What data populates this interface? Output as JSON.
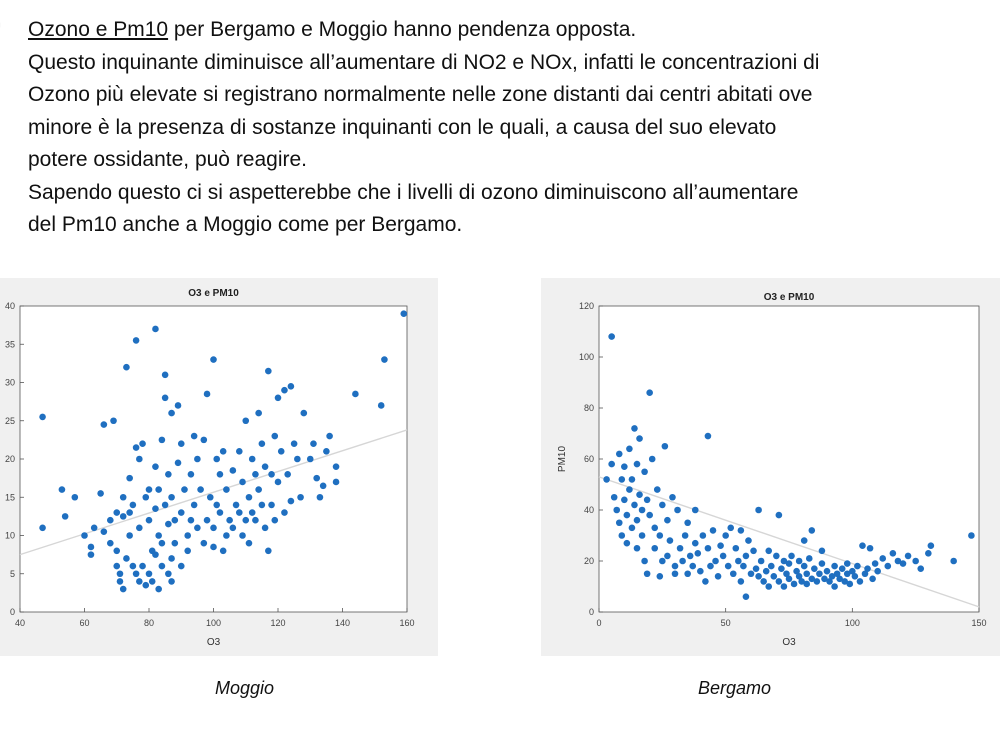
{
  "text": {
    "line1_underlined": "Ozono e Pm10",
    "line1_rest": " per Bergamo e Moggio hanno pendenza opposta.",
    "line2": "Questo inquinante diminuisce all’aumentare di NO2 e NOx, infatti le concentrazioni di",
    "line3": "Ozono più elevate si registrano normalmente nelle zone distanti dai centri abitati ove",
    "line4": "minore è la presenza di sostanze inquinanti con le quali, a causa del suo elevato",
    "line5": "potere ossidante, può reagire.",
    "line6": "Sapendo questo ci si aspetterebbe che i livelli di ozono diminuiscono all’aumentare",
    "line7": "del Pm10 anche a Moggio come per Bergamo."
  },
  "captions": {
    "left": "Moggio",
    "right": "Bergamo"
  },
  "chart_data": [
    {
      "type": "scatter",
      "title": "O3 e PM10",
      "xlabel": "O3",
      "ylabel": "",
      "xlim": [
        40,
        160
      ],
      "ylim": [
        0,
        40
      ],
      "xticks": [
        40,
        60,
        80,
        100,
        120,
        140,
        160
      ],
      "yticks": [
        0,
        5,
        10,
        15,
        20,
        25,
        30,
        35,
        40
      ],
      "grid": false,
      "color": "#1f6fc0",
      "trend": [
        [
          40,
          7.5
        ],
        [
          160,
          23.8
        ]
      ],
      "points": [
        [
          47,
          25.5
        ],
        [
          47,
          11
        ],
        [
          53,
          16
        ],
        [
          54,
          12.5
        ],
        [
          57,
          15
        ],
        [
          60,
          10
        ],
        [
          62,
          8.5
        ],
        [
          62,
          7.5
        ],
        [
          63,
          11
        ],
        [
          65,
          15.5
        ],
        [
          66,
          10.5
        ],
        [
          66,
          24.5
        ],
        [
          68,
          12
        ],
        [
          68,
          9
        ],
        [
          69,
          25
        ],
        [
          70,
          6
        ],
        [
          70,
          8
        ],
        [
          70,
          13
        ],
        [
          71,
          4
        ],
        [
          71,
          5
        ],
        [
          72,
          12.5
        ],
        [
          72,
          15
        ],
        [
          72,
          3
        ],
        [
          73,
          7
        ],
        [
          73,
          32
        ],
        [
          74,
          13
        ],
        [
          74,
          10
        ],
        [
          74,
          17.5
        ],
        [
          75,
          6
        ],
        [
          75,
          14
        ],
        [
          76,
          35.5
        ],
        [
          76,
          5
        ],
        [
          76,
          21.5
        ],
        [
          77,
          4
        ],
        [
          77,
          11
        ],
        [
          77,
          20
        ],
        [
          78,
          22
        ],
        [
          78,
          6
        ],
        [
          79,
          15
        ],
        [
          79,
          3.5
        ],
        [
          80,
          16
        ],
        [
          80,
          12
        ],
        [
          80,
          5
        ],
        [
          81,
          8
        ],
        [
          81,
          4
        ],
        [
          82,
          37
        ],
        [
          82,
          13.5
        ],
        [
          82,
          7.5
        ],
        [
          82,
          19
        ],
        [
          83,
          10
        ],
        [
          83,
          3
        ],
        [
          83,
          16
        ],
        [
          84,
          9
        ],
        [
          84,
          6
        ],
        [
          84,
          22.5
        ],
        [
          85,
          14
        ],
        [
          85,
          31
        ],
        [
          85,
          28
        ],
        [
          86,
          5
        ],
        [
          86,
          11.5
        ],
        [
          86,
          18
        ],
        [
          87,
          4
        ],
        [
          87,
          7
        ],
        [
          87,
          26
        ],
        [
          87,
          15
        ],
        [
          88,
          9
        ],
        [
          88,
          12
        ],
        [
          89,
          27
        ],
        [
          89,
          19.5
        ],
        [
          90,
          13
        ],
        [
          90,
          6
        ],
        [
          90,
          22
        ],
        [
          91,
          16
        ],
        [
          92,
          10
        ],
        [
          92,
          8
        ],
        [
          93,
          18
        ],
        [
          93,
          12
        ],
        [
          94,
          23
        ],
        [
          94,
          14
        ],
        [
          95,
          11
        ],
        [
          95,
          20
        ],
        [
          96,
          16
        ],
        [
          97,
          22.5
        ],
        [
          97,
          9
        ],
        [
          98,
          12
        ],
        [
          98,
          28.5
        ],
        [
          99,
          15
        ],
        [
          100,
          33
        ],
        [
          100,
          11
        ],
        [
          100,
          8.5
        ],
        [
          101,
          20
        ],
        [
          101,
          14
        ],
        [
          102,
          13
        ],
        [
          102,
          18
        ],
        [
          103,
          8
        ],
        [
          103,
          21
        ],
        [
          104,
          10
        ],
        [
          104,
          16
        ],
        [
          105,
          12
        ],
        [
          106,
          18.5
        ],
        [
          106,
          11
        ],
        [
          107,
          14
        ],
        [
          108,
          21
        ],
        [
          108,
          13
        ],
        [
          109,
          10
        ],
        [
          109,
          17
        ],
        [
          110,
          25
        ],
        [
          110,
          12
        ],
        [
          111,
          15
        ],
        [
          111,
          9
        ],
        [
          112,
          20
        ],
        [
          112,
          13
        ],
        [
          113,
          18
        ],
        [
          113,
          12
        ],
        [
          114,
          26
        ],
        [
          114,
          16
        ],
        [
          115,
          14
        ],
        [
          115,
          22
        ],
        [
          116,
          11
        ],
        [
          116,
          19
        ],
        [
          117,
          8
        ],
        [
          117,
          31.5
        ],
        [
          118,
          18
        ],
        [
          118,
          14
        ],
        [
          119,
          23
        ],
        [
          119,
          12
        ],
        [
          120,
          17
        ],
        [
          120,
          28
        ],
        [
          121,
          21
        ],
        [
          122,
          29
        ],
        [
          122,
          13
        ],
        [
          123,
          18
        ],
        [
          124,
          29.5
        ],
        [
          124,
          14.5
        ],
        [
          125,
          22
        ],
        [
          126,
          20
        ],
        [
          127,
          15
        ],
        [
          128,
          26
        ],
        [
          130,
          20
        ],
        [
          131,
          22
        ],
        [
          132,
          17.5
        ],
        [
          133,
          15
        ],
        [
          134,
          16.5
        ],
        [
          135,
          21
        ],
        [
          136,
          23
        ],
        [
          138,
          17
        ],
        [
          138,
          19
        ],
        [
          144,
          28.5
        ],
        [
          152,
          27
        ],
        [
          153,
          33
        ],
        [
          159,
          39
        ]
      ]
    },
    {
      "type": "scatter",
      "title": "O3 e PM10",
      "xlabel": "O3",
      "ylabel": "PM10",
      "xlim": [
        0,
        150
      ],
      "ylim": [
        0,
        120
      ],
      "xticks": [
        0,
        50,
        100,
        150
      ],
      "yticks": [
        0,
        20,
        40,
        60,
        80,
        100,
        120
      ],
      "grid": false,
      "color": "#1f6fc0",
      "trend": [
        [
          0,
          53
        ],
        [
          150,
          2
        ]
      ],
      "points": [
        [
          3,
          52
        ],
        [
          5,
          108
        ],
        [
          5,
          58
        ],
        [
          6,
          45
        ],
        [
          7,
          40
        ],
        [
          8,
          62
        ],
        [
          8,
          35
        ],
        [
          9,
          52
        ],
        [
          9,
          30
        ],
        [
          10,
          44
        ],
        [
          10,
          57
        ],
        [
          11,
          38
        ],
        [
          11,
          27
        ],
        [
          12,
          64
        ],
        [
          12,
          48
        ],
        [
          13,
          33
        ],
        [
          13,
          52
        ],
        [
          14,
          72
        ],
        [
          14,
          42
        ],
        [
          15,
          58
        ],
        [
          15,
          36
        ],
        [
          15,
          25
        ],
        [
          16,
          46
        ],
        [
          16,
          68
        ],
        [
          17,
          40
        ],
        [
          17,
          30
        ],
        [
          18,
          55
        ],
        [
          18,
          20
        ],
        [
          19,
          44
        ],
        [
          19,
          15
        ],
        [
          20,
          86
        ],
        [
          20,
          38
        ],
        [
          21,
          60
        ],
        [
          22,
          33
        ],
        [
          22,
          25
        ],
        [
          23,
          48
        ],
        [
          24,
          30
        ],
        [
          24,
          14
        ],
        [
          25,
          42
        ],
        [
          25,
          20
        ],
        [
          26,
          65
        ],
        [
          27,
          36
        ],
        [
          27,
          22
        ],
        [
          28,
          28
        ],
        [
          29,
          45
        ],
        [
          30,
          18
        ],
        [
          30,
          15
        ],
        [
          31,
          40
        ],
        [
          32,
          25
        ],
        [
          33,
          20
        ],
        [
          34,
          30
        ],
        [
          35,
          15
        ],
        [
          35,
          35
        ],
        [
          36,
          22
        ],
        [
          37,
          18
        ],
        [
          38,
          27
        ],
        [
          38,
          40
        ],
        [
          39,
          23
        ],
        [
          40,
          16
        ],
        [
          41,
          30
        ],
        [
          42,
          12
        ],
        [
          43,
          69
        ],
        [
          43,
          25
        ],
        [
          44,
          18
        ],
        [
          45,
          32
        ],
        [
          46,
          20
        ],
        [
          47,
          14
        ],
        [
          48,
          26
        ],
        [
          49,
          22
        ],
        [
          50,
          30
        ],
        [
          51,
          18
        ],
        [
          52,
          33
        ],
        [
          53,
          15
        ],
        [
          54,
          25
        ],
        [
          55,
          20
        ],
        [
          56,
          32
        ],
        [
          56,
          12
        ],
        [
          57,
          18
        ],
        [
          58,
          6
        ],
        [
          58,
          22
        ],
        [
          59,
          28
        ],
        [
          60,
          15
        ],
        [
          61,
          24
        ],
        [
          62,
          17
        ],
        [
          63,
          14
        ],
        [
          63,
          40
        ],
        [
          64,
          20
        ],
        [
          65,
          12
        ],
        [
          66,
          16
        ],
        [
          67,
          24
        ],
        [
          67,
          10
        ],
        [
          68,
          18
        ],
        [
          69,
          14
        ],
        [
          70,
          22
        ],
        [
          71,
          12
        ],
        [
          71,
          38
        ],
        [
          72,
          17
        ],
        [
          73,
          20
        ],
        [
          73,
          10
        ],
        [
          74,
          15
        ],
        [
          75,
          19
        ],
        [
          75,
          13
        ],
        [
          76,
          22
        ],
        [
          77,
          11
        ],
        [
          78,
          16
        ],
        [
          79,
          20
        ],
        [
          79,
          14
        ],
        [
          80,
          12
        ],
        [
          81,
          18
        ],
        [
          81,
          28
        ],
        [
          82,
          15
        ],
        [
          82,
          11
        ],
        [
          83,
          21
        ],
        [
          84,
          13
        ],
        [
          84,
          32
        ],
        [
          85,
          17
        ],
        [
          86,
          12
        ],
        [
          87,
          15
        ],
        [
          88,
          19
        ],
        [
          88,
          24
        ],
        [
          89,
          13
        ],
        [
          90,
          16
        ],
        [
          91,
          12
        ],
        [
          92,
          14
        ],
        [
          93,
          18
        ],
        [
          93,
          10
        ],
        [
          94,
          15
        ],
        [
          95,
          13
        ],
        [
          96,
          17
        ],
        [
          97,
          12
        ],
        [
          98,
          19
        ],
        [
          98,
          15
        ],
        [
          99,
          11
        ],
        [
          100,
          16
        ],
        [
          101,
          14
        ],
        [
          102,
          18
        ],
        [
          103,
          12
        ],
        [
          104,
          26
        ],
        [
          105,
          15
        ],
        [
          106,
          17
        ],
        [
          107,
          25
        ],
        [
          108,
          13
        ],
        [
          109,
          19
        ],
        [
          110,
          16
        ],
        [
          112,
          21
        ],
        [
          114,
          18
        ],
        [
          116,
          23
        ],
        [
          118,
          20
        ],
        [
          120,
          19
        ],
        [
          122,
          22
        ],
        [
          125,
          20
        ],
        [
          127,
          17
        ],
        [
          130,
          23
        ],
        [
          131,
          26
        ],
        [
          140,
          20
        ],
        [
          147,
          30
        ]
      ]
    }
  ]
}
